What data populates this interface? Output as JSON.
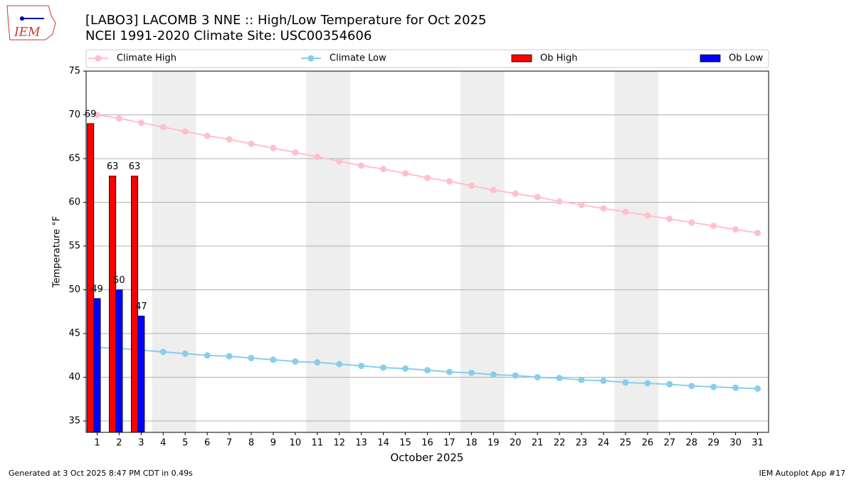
{
  "chart_data": {
    "type": "bar",
    "logo_text": "IEM",
    "title": "[LABO3] LACOMB 3 NNE :: High/Low Temperature for Oct 2025",
    "subtitle": "NCEI 1991-2020 Climate Site: USC00354606",
    "xlabel": "October 2025",
    "ylabel": "Temperature °F",
    "footer_left": "Generated at 3 Oct 2025 8:47 PM CDT in 0.49s",
    "footer_right": "IEM Autoplot App #17",
    "x": [
      1,
      2,
      3,
      4,
      5,
      6,
      7,
      8,
      9,
      10,
      11,
      12,
      13,
      14,
      15,
      16,
      17,
      18,
      19,
      20,
      21,
      22,
      23,
      24,
      25,
      26,
      27,
      28,
      29,
      30,
      31
    ],
    "xlim": [
      0.5,
      31.5
    ],
    "xticks": [
      1,
      2,
      3,
      4,
      5,
      6,
      7,
      8,
      9,
      10,
      11,
      12,
      13,
      14,
      15,
      16,
      17,
      18,
      19,
      20,
      21,
      22,
      23,
      24,
      25,
      26,
      27,
      28,
      29,
      30,
      31
    ],
    "ylim": [
      33.7,
      75
    ],
    "yticks": [
      35,
      40,
      45,
      50,
      55,
      60,
      65,
      70,
      75
    ],
    "grid": true,
    "shaded_spans": [
      [
        3.5,
        5.5
      ],
      [
        10.5,
        12.5
      ],
      [
        17.5,
        19.5
      ],
      [
        24.5,
        26.5
      ]
    ],
    "series": [
      {
        "name": "Climate High",
        "kind": "line",
        "color": "#ffc0cb",
        "values": [
          70.0,
          69.6,
          69.1,
          68.6,
          68.1,
          67.6,
          67.2,
          66.7,
          66.2,
          65.7,
          65.2,
          64.7,
          64.2,
          63.8,
          63.3,
          62.8,
          62.4,
          61.9,
          61.4,
          61.0,
          60.6,
          60.1,
          59.7,
          59.3,
          58.9,
          58.5,
          58.1,
          57.7,
          57.3,
          56.9,
          56.5
        ]
      },
      {
        "name": "Climate Low",
        "kind": "line",
        "color": "#87ceeb",
        "values": [
          43.4,
          43.3,
          43.1,
          42.9,
          42.7,
          42.5,
          42.4,
          42.2,
          42.0,
          41.8,
          41.7,
          41.5,
          41.3,
          41.1,
          41.0,
          40.8,
          40.6,
          40.5,
          40.3,
          40.2,
          40.0,
          39.9,
          39.7,
          39.6,
          39.4,
          39.3,
          39.2,
          39.0,
          38.9,
          38.8,
          38.7
        ]
      },
      {
        "name": "Ob High",
        "kind": "bar",
        "color": "#ff0000",
        "values": [
          69,
          63,
          63,
          null,
          null,
          null,
          null,
          null,
          null,
          null,
          null,
          null,
          null,
          null,
          null,
          null,
          null,
          null,
          null,
          null,
          null,
          null,
          null,
          null,
          null,
          null,
          null,
          null,
          null,
          null,
          null
        ]
      },
      {
        "name": "Ob Low",
        "kind": "bar",
        "color": "#0000ff",
        "values": [
          49,
          50,
          47,
          null,
          null,
          null,
          null,
          null,
          null,
          null,
          null,
          null,
          null,
          null,
          null,
          null,
          null,
          null,
          null,
          null,
          null,
          null,
          null,
          null,
          null,
          null,
          null,
          null,
          null,
          null,
          null
        ]
      }
    ]
  }
}
